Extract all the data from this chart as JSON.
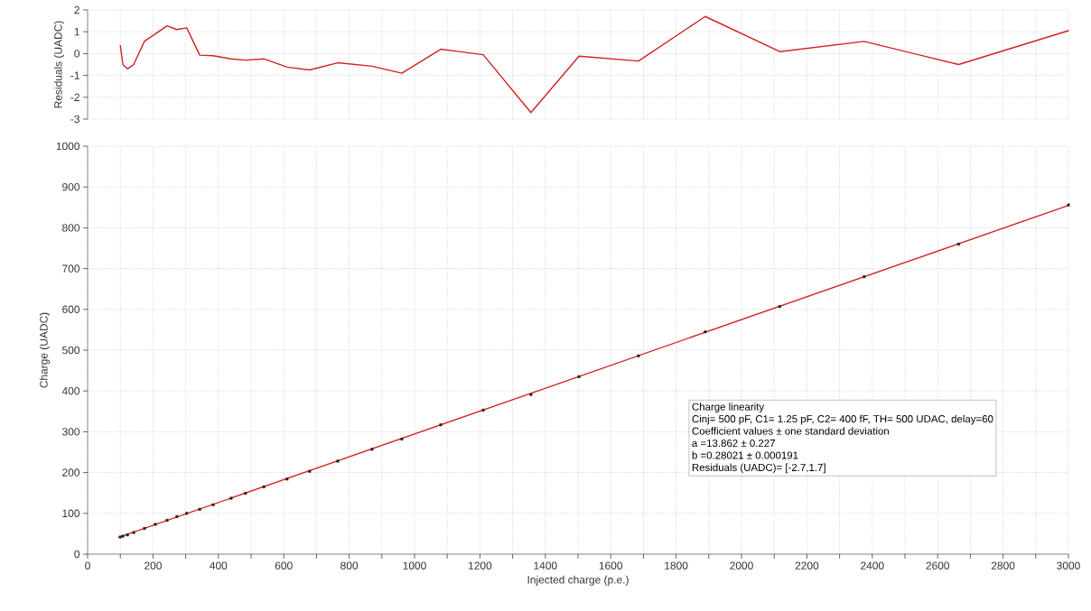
{
  "chart_data": [
    {
      "type": "line",
      "ylabel": "Residuals (UADC)",
      "xlim": [
        0,
        3000
      ],
      "ylim": [
        -3,
        2
      ],
      "yticks": [
        -3,
        -2,
        -1,
        0,
        1,
        2
      ],
      "grid": true,
      "tick_labels": "y",
      "line_style": "solid",
      "xticks": [
        0,
        {
          "value": 100,
          "label": null
        },
        200,
        {
          "value": 300,
          "label": null
        },
        400,
        {
          "value": 500,
          "label": null
        },
        600,
        {
          "value": 700,
          "label": null
        },
        800,
        {
          "value": 900,
          "label": null
        },
        1000,
        {
          "value": 1100,
          "label": null
        },
        1200,
        {
          "value": 1300,
          "label": null
        },
        1400,
        {
          "value": 1500,
          "label": null
        },
        1600,
        {
          "value": 1700,
          "label": null
        },
        1800,
        {
          "value": 1900,
          "label": null
        },
        2000,
        {
          "value": 2100,
          "label": null
        },
        2200,
        {
          "value": 2300,
          "label": null
        },
        2400,
        {
          "value": 2500,
          "label": null
        },
        2600,
        {
          "value": 2700,
          "label": null
        },
        2800,
        {
          "value": 2900,
          "label": null
        },
        3000
      ],
      "x": [
        100,
        108,
        122,
        141,
        174,
        207,
        243,
        273,
        303,
        343,
        384,
        439,
        483,
        539,
        610,
        679,
        765,
        870,
        961,
        1080,
        1210,
        1356,
        1503,
        1685,
        1889,
        2117,
        2375,
        2664,
        3000
      ],
      "series": [
        {
          "color": "#d42020",
          "values": [
            0.37,
            -0.5,
            -0.7,
            -0.5,
            0.57,
            0.9,
            1.27,
            1.1,
            1.18,
            -0.07,
            -0.1,
            -0.24,
            -0.3,
            -0.24,
            -0.62,
            -0.75,
            -0.42,
            -0.58,
            -0.9,
            0.2,
            -0.05,
            -2.7,
            -0.12,
            -0.34,
            1.7,
            0.09,
            0.56,
            -0.5,
            1.05
          ]
        }
      ]
    },
    {
      "type": "scatter",
      "xlabel": "Injected charge (p.e.)",
      "ylabel": "Charge (UADC)",
      "xlim": [
        0,
        3000
      ],
      "ylim": [
        0,
        1000
      ],
      "yticks": [
        0,
        100,
        200,
        300,
        400,
        500,
        600,
        700,
        800,
        900,
        1000
      ],
      "grid": true,
      "xticks": [
        0,
        {
          "value": 100,
          "label": null
        },
        200,
        {
          "value": 300,
          "label": null
        },
        400,
        {
          "value": 500,
          "label": null
        },
        600,
        {
          "value": 700,
          "label": null
        },
        800,
        {
          "value": 900,
          "label": null
        },
        1000,
        {
          "value": 1100,
          "label": null
        },
        1200,
        {
          "value": 1300,
          "label": null
        },
        1400,
        {
          "value": 1500,
          "label": null
        },
        1600,
        {
          "value": 1700,
          "label": null
        },
        1800,
        {
          "value": 1900,
          "label": null
        },
        2000,
        {
          "value": 2100,
          "label": null
        },
        2200,
        {
          "value": 2300,
          "label": null
        },
        2400,
        {
          "value": 2500,
          "label": null
        },
        2600,
        {
          "value": 2700,
          "label": null
        },
        2800,
        {
          "value": 2900,
          "label": null
        },
        3000
      ],
      "x": [
        100,
        108,
        122,
        141,
        174,
        207,
        243,
        273,
        303,
        343,
        384,
        439,
        483,
        539,
        610,
        679,
        765,
        870,
        961,
        1080,
        1210,
        1356,
        1503,
        1685,
        1889,
        2117,
        2375,
        2664,
        3000
      ],
      "series": [
        {
          "type": "scatter",
          "marker": "square",
          "color": "#222222",
          "values": [
            42,
            44,
            47,
            53,
            63,
            73,
            83,
            92,
            100,
            110,
            121,
            137,
            149,
            165,
            184,
            203,
            228,
            257,
            282,
            317,
            353,
            391,
            435,
            486,
            545,
            607,
            680,
            760,
            856
          ]
        },
        {
          "type": "line",
          "marker": "none",
          "color": "#d42020",
          "x": [
            95,
            3000
          ],
          "values": [
            41,
            855
          ]
        }
      ],
      "annotations": [
        "Charge linearity",
        "Cinj= 500 pF, C1= 1.25 pF, C2= 400 fF, TH= 500 UDAC,  delay=60",
        "Coefficient values ± one standard deviation",
        "a =13.862 ± 0.227",
        "b =0.28021 ± 0.000191",
        "Residuals (UADC)= [-2.7,1.7]"
      ]
    }
  ]
}
